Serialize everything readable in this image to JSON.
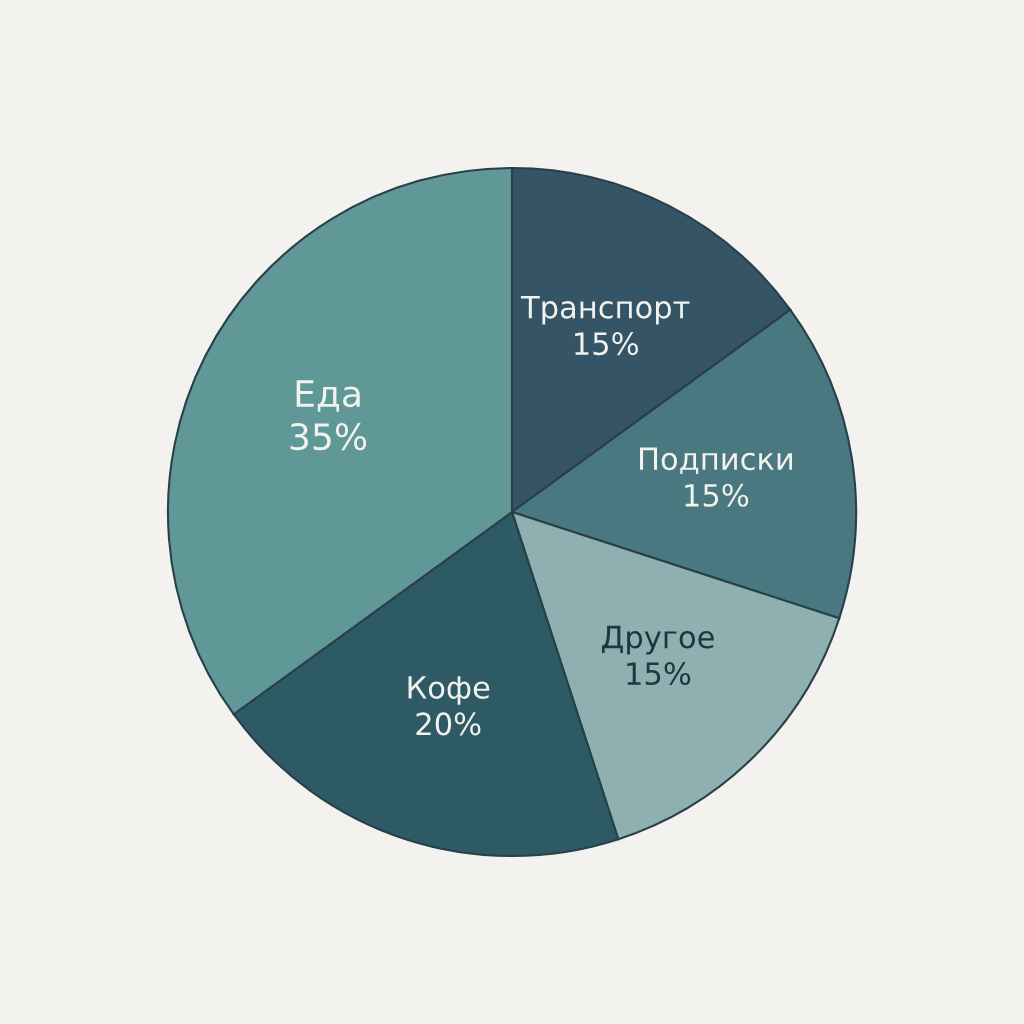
{
  "chart_data": {
    "type": "pie",
    "categories": [
      "Транспорт",
      "Подписки",
      "Другое",
      "Кофе",
      "Еда"
    ],
    "values": [
      15,
      15,
      15,
      20,
      35
    ],
    "value_labels": [
      "15%",
      "15%",
      "15%",
      "20%",
      "35%"
    ],
    "colors": [
      "#355466",
      "#4a7880",
      "#8fb0b0",
      "#2e5a66",
      "#5f9896"
    ],
    "legend": false
  }
}
